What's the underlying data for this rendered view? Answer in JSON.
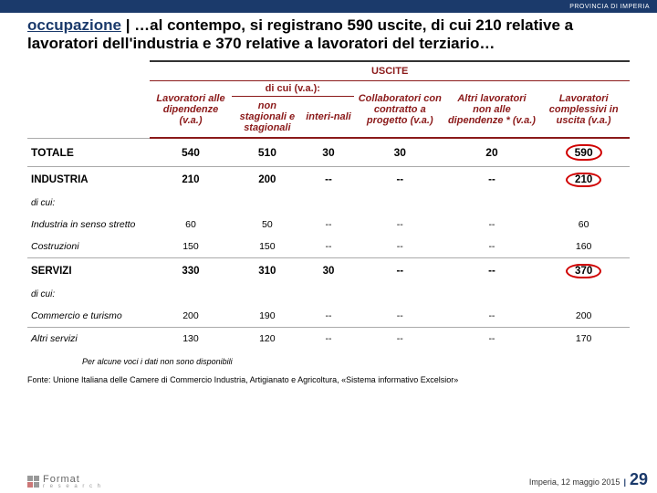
{
  "topbar": {
    "label": "PROVINCIA DI IMPERIA"
  },
  "title": {
    "keyword": "occupazione",
    "rest": " | …al contempo, si registrano 590 uscite, di cui 210 relative a lavoratori dell'industria e 370 relative a lavoratori del terziario…"
  },
  "table": {
    "group_header": "USCITE",
    "headers": {
      "h1": "Lavoratori alle dipendenze (v.a.)",
      "h2a": "di cui (v.a.):",
      "h2b": "non stagionali e stagionali",
      "h2c": "interi-nali",
      "h3": "Collaboratori con contratto a progetto (v.a.)",
      "h4": "Altri lavoratori non alle dipendenze * (v.a.)",
      "h5": "Lavoratori complessivi in uscita (v.a.)"
    },
    "rows": [
      {
        "cls": "totale",
        "label": "TOTALE",
        "c": [
          "540",
          "510",
          "30",
          "30",
          "20",
          "590"
        ],
        "circleLast": true
      },
      {
        "cls": "sector",
        "label": "INDUSTRIA",
        "c": [
          "210",
          "200",
          "--",
          "--",
          "--",
          "210"
        ],
        "circleLast": true
      },
      {
        "cls": "dicui",
        "label": "di cui:",
        "c": [
          "",
          "",
          "",
          "",
          "",
          ""
        ]
      },
      {
        "cls": "sub",
        "label": "Industria in senso stretto",
        "c": [
          "60",
          "50",
          "--",
          "--",
          "--",
          "60"
        ]
      },
      {
        "cls": "sub",
        "label": "Costruzioni",
        "c": [
          "150",
          "150",
          "--",
          "--",
          "--",
          "160"
        ]
      },
      {
        "cls": "sector",
        "label": "SERVIZI",
        "c": [
          "330",
          "310",
          "30",
          "--",
          "--",
          "370"
        ],
        "circleLast": true
      },
      {
        "cls": "dicui",
        "label": "di cui:",
        "c": [
          "",
          "",
          "",
          "",
          "",
          ""
        ]
      },
      {
        "cls": "sub",
        "label": "Commercio e turismo",
        "c": [
          "200",
          "190",
          "--",
          "--",
          "--",
          "200"
        ]
      },
      {
        "cls": "sub",
        "label": "Altri servizi",
        "c": [
          "130",
          "120",
          "--",
          "--",
          "--",
          "170"
        ]
      }
    ]
  },
  "footnote": "Per alcune voci i dati non sono disponibili",
  "source": "Fonte: Unione Italiana delle Camere di Commercio Industria, Artigianato e Agricoltura, «Sistema informativo Excelsior»",
  "footer": {
    "logo_text": "Format",
    "logo_sub": "r e s e a r c h",
    "place_date": "Imperia, 12 maggio 2015",
    "page": "29"
  },
  "colors": {
    "brand_blue": "#1b3a6b",
    "header_red": "#8b1a1a",
    "circle_red": "#d00000"
  }
}
